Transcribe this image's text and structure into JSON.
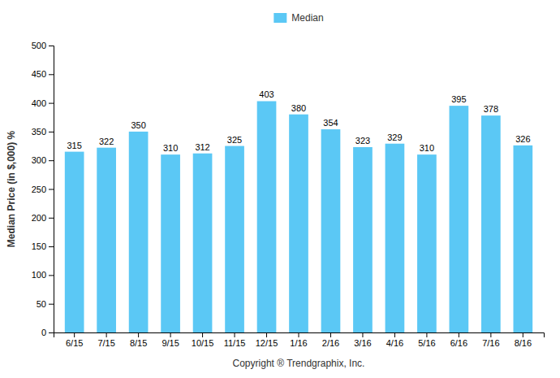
{
  "chart_data": {
    "type": "bar",
    "categories": [
      "6/15",
      "7/15",
      "8/15",
      "9/15",
      "10/15",
      "11/15",
      "12/15",
      "1/16",
      "2/16",
      "3/16",
      "4/16",
      "5/16",
      "6/16",
      "7/16",
      "8/16"
    ],
    "series": [
      {
        "name": "Median",
        "color": "#5BC8F5",
        "values": [
          315,
          322,
          350,
          310,
          312,
          325,
          403,
          380,
          354,
          323,
          329,
          310,
          395,
          378,
          326
        ]
      }
    ],
    "xlabel": "Copyright ® Trendgraphix, Inc.",
    "ylabel": "Median Price (in $,000) %",
    "ylim": [
      0,
      500
    ],
    "yticks": [
      0,
      50,
      100,
      150,
      200,
      250,
      300,
      350,
      400,
      450,
      500
    ],
    "grid": false,
    "legend": "top",
    "data_labels": true
  }
}
